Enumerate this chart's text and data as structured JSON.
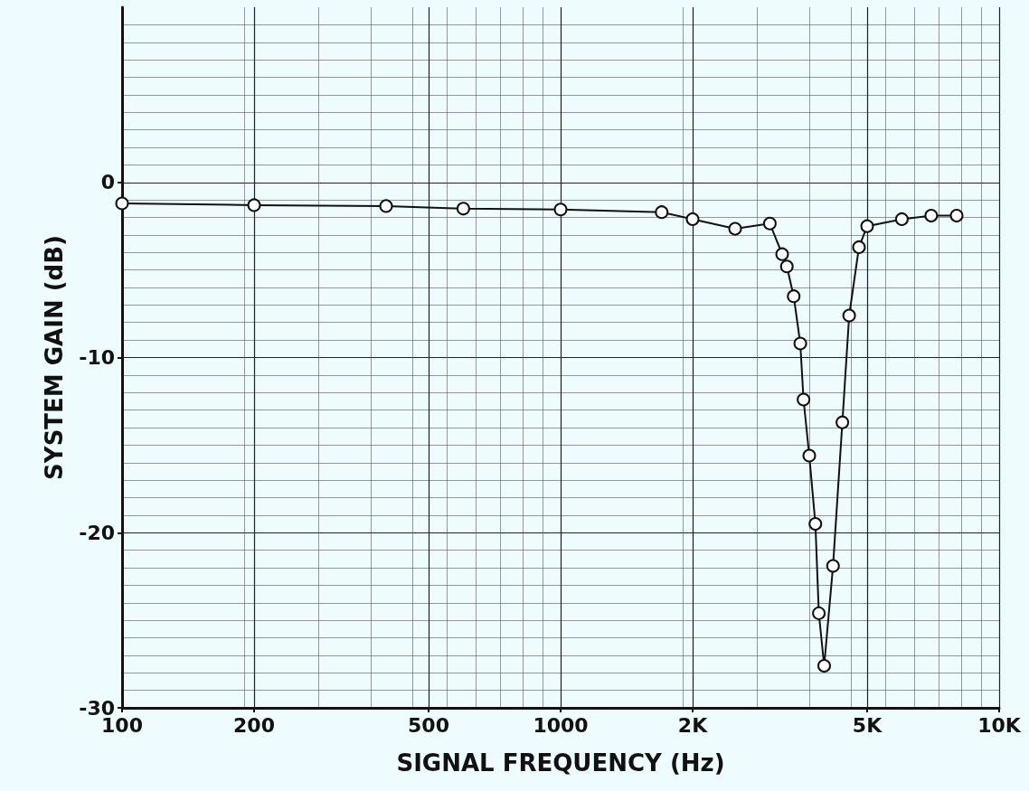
{
  "chart_data": {
    "type": "line",
    "xlabel": "SIGNAL FREQUENCY (Hz)",
    "ylabel": "SYSTEM GAIN (dB)",
    "log": "x",
    "grid": true,
    "marker": "circle",
    "line_style": "solid",
    "xlim": [
      100,
      10000
    ],
    "xticks": [
      100,
      200,
      500,
      1000,
      {
        "value": 2000,
        "label": "2K"
      },
      {
        "value": 5000,
        "label": "5K"
      },
      {
        "value": 10000,
        "label": "10K"
      }
    ],
    "ylim": [
      -30,
      10
    ],
    "yticks": [
      -30,
      -20,
      -10,
      0
    ],
    "x": [
      100,
      200,
      400,
      600,
      1000,
      1700,
      2000,
      2500,
      3000,
      3200,
      3280,
      3400,
      3520,
      3580,
      3690,
      3810,
      3880,
      3990,
      4180,
      4390,
      4550,
      4790,
      5000,
      6000,
      7000,
      8000
    ],
    "series": [
      {
        "color": "#111111",
        "values": [
          -1.2,
          -1.3,
          -1.35,
          -1.5,
          -1.55,
          -1.7,
          -2.1,
          -2.65,
          -2.35,
          -4.1,
          -4.8,
          -6.5,
          -9.2,
          -12.4,
          -15.6,
          -19.5,
          -24.6,
          -27.6,
          -21.9,
          -13.7,
          -7.6,
          -3.7,
          -2.5,
          -2.1,
          -1.9,
          -1.9
        ]
      }
    ]
  }
}
